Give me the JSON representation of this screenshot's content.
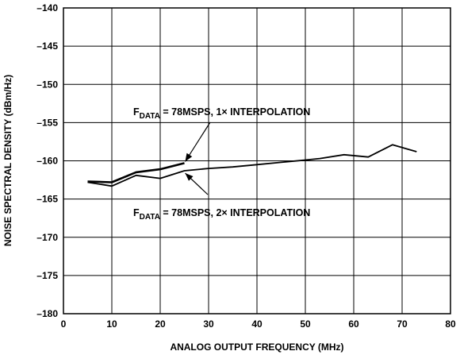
{
  "chart_data": {
    "type": "line",
    "xlabel": "ANALOG OUTPUT FREQUENCY (MHz)",
    "ylabel": "NOISE SPECTRAL DENSITY (dBm/Hz)",
    "xlim": [
      0,
      80
    ],
    "ylim": [
      -180,
      -140
    ],
    "xticks": [
      "0",
      "10",
      "20",
      "30",
      "40",
      "50",
      "60",
      "70",
      "80"
    ],
    "yticks": [
      "–140",
      "–145",
      "–150",
      "–155",
      "–160",
      "–165",
      "–170",
      "–175",
      "–180"
    ],
    "grid": true,
    "series": [
      {
        "name": "FDATA = 78MSPS, 1× INTERPOLATION",
        "x": [
          5,
          10,
          15,
          20,
          25
        ],
        "y": [
          -162.7,
          -162.8,
          -161.5,
          -161.1,
          -160.3
        ]
      },
      {
        "name": "FDATA = 78MSPS, 2× INTERPOLATION",
        "x": [
          5,
          10,
          15,
          20,
          25,
          30,
          35,
          40,
          45,
          50,
          53,
          58,
          63,
          68,
          73
        ],
        "y": [
          -162.8,
          -163.3,
          -161.9,
          -162.3,
          -161.3,
          -161.0,
          -160.8,
          -160.5,
          -160.2,
          -159.9,
          -159.7,
          -159.2,
          -159.5,
          -157.9,
          -158.8
        ]
      }
    ],
    "annotations": [
      {
        "main": "F",
        "sub": "DATA",
        "rest": " = 78MSPS, 1× INTERPOLATION"
      },
      {
        "main": "F",
        "sub": "DATA",
        "rest": " = 78MSPS, 2× INTERPOLATION"
      }
    ]
  }
}
